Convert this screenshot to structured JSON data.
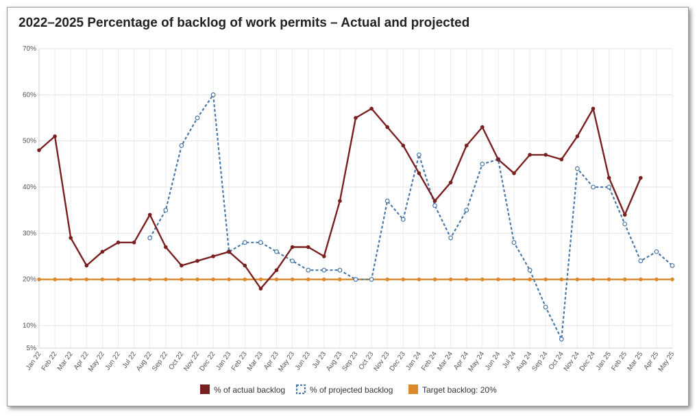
{
  "chart_data": {
    "type": "line",
    "title": "2022–2025 Percentage of backlog of work permits – Actual and projected",
    "categories": [
      "Jan 22",
      "Feb 22",
      "Mar 22",
      "Apr 22",
      "May 22",
      "Jun 22",
      "Jul 22",
      "Aug 22",
      "Sep 22",
      "Oct 22",
      "Nov 22",
      "Dec 22",
      "Jan 23",
      "Feb 23",
      "Mar 23",
      "Apr 23",
      "May 23",
      "Jun 23",
      "Jul 23",
      "Aug 23",
      "Sep 23",
      "Oct 23",
      "Nov 23",
      "Dec 23",
      "Jan 24",
      "Feb 24",
      "Mar 24",
      "Apr 24",
      "May 24",
      "Jun 24",
      "Jul 24",
      "Aug 24",
      "Sep 24",
      "Oct 24",
      "Nov 24",
      "Dec 24",
      "Jan 25",
      "Feb 25",
      "Mar 25",
      "Apr 25",
      "May 25"
    ],
    "y_ticks": [
      5,
      10,
      20,
      30,
      40,
      50,
      60,
      70
    ],
    "y_tick_labels": [
      "5%",
      "10%",
      "20%",
      "30%",
      "40%",
      "50%",
      "60%",
      "70%"
    ],
    "ylim": [
      5,
      70
    ],
    "grid": true,
    "legend_position": "bottom",
    "series": [
      {
        "name": "% of actual backlog",
        "color": "#7a1f1f",
        "style": "solid",
        "values": [
          48,
          51,
          29,
          23,
          26,
          28,
          28,
          34,
          27,
          23,
          24,
          25,
          26,
          23,
          18,
          22,
          27,
          27,
          25,
          37,
          55,
          57,
          53,
          49,
          43,
          37,
          41,
          49,
          53,
          46,
          43,
          47,
          47,
          46,
          51,
          57,
          42,
          34,
          42,
          null,
          null
        ]
      },
      {
        "name": "% of projected backlog",
        "color": "#4a78a8",
        "style": "dotted",
        "values": [
          null,
          null,
          null,
          null,
          null,
          null,
          null,
          29,
          35,
          49,
          55,
          60,
          26,
          28,
          28,
          26,
          24,
          22,
          22,
          22,
          20,
          20,
          37,
          33,
          47,
          36,
          29,
          35,
          45,
          46,
          28,
          22,
          14,
          7,
          44,
          40,
          40,
          32,
          24,
          26,
          23
        ]
      },
      {
        "name": "Target backlog: 20%",
        "color": "#d98a2c",
        "style": "solid",
        "values": [
          20,
          20,
          20,
          20,
          20,
          20,
          20,
          20,
          20,
          20,
          20,
          20,
          20,
          20,
          20,
          20,
          20,
          20,
          20,
          20,
          20,
          20,
          20,
          20,
          20,
          20,
          20,
          20,
          20,
          20,
          20,
          20,
          20,
          20,
          20,
          20,
          20,
          20,
          20,
          20,
          20
        ]
      }
    ]
  }
}
